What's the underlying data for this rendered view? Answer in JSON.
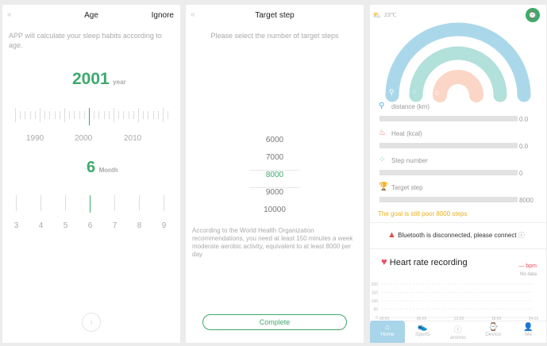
{
  "age": {
    "title": "Age",
    "ignore": "Ignore",
    "desc": "APP will calculate your sleep habits according to age.",
    "year_value": "2001",
    "year_unit": "year",
    "year_ticks": [
      "1990",
      "2000",
      "2010"
    ],
    "month_value": "6",
    "month_unit": "Month",
    "month_ticks": [
      "3",
      "4",
      "5",
      "6",
      "7",
      "8",
      "9"
    ]
  },
  "target": {
    "title": "Target step",
    "subtitle": "Please select the number of target steps",
    "options": [
      "6000",
      "7000",
      "8000",
      "9000",
      "10000"
    ],
    "selected": "8000",
    "note": "According to the World Health Organization recommendations, you need at least 150 minutes a week moderate aerobic activity, equivalent to at least 8000 per day",
    "complete": "Complete"
  },
  "home": {
    "temperature": "23℃",
    "weather_icon": "partly-cloudy-icon",
    "metrics": [
      {
        "label": "distance (km)",
        "value": "0.0",
        "icon": "location-icon",
        "color": "#4ab3e0"
      },
      {
        "label": "Heat (kcal)",
        "value": "0.0",
        "icon": "flame-icon",
        "color": "#f06e6e"
      },
      {
        "label": "Step number",
        "value": "0",
        "icon": "footprints-icon",
        "color": "#5cc4a6"
      },
      {
        "label": "Target step",
        "value": "8000",
        "icon": "trophy-icon",
        "color": "#e8b020"
      }
    ],
    "goal_text": "The goal is still poor 8000 steps",
    "bluetooth": "Bluetooth is disconnected, please connect",
    "heart_title": "Heart rate recording",
    "bpm": "bpm",
    "no_data": "No data",
    "chart_data": {
      "type": "line",
      "y_ticks": [
        "200",
        "150",
        "100",
        "50",
        "0"
      ],
      "x_ticks": [
        "00:00",
        "06:00",
        "12:00",
        "18:00",
        "24:00"
      ],
      "ylim": [
        0,
        200
      ],
      "series": []
    },
    "nav": [
      {
        "label": "Home",
        "active": true
      },
      {
        "label": "Sports"
      },
      {
        "label": "aroimo"
      },
      {
        "label": "Device"
      },
      {
        "label": "Me"
      }
    ],
    "colors": {
      "accent": "#3daa6c",
      "arc_outer": "#aad8ea",
      "arc_middle": "#b2e0da",
      "arc_inner": "#fbd6c6",
      "goal": "#e8b020"
    }
  }
}
